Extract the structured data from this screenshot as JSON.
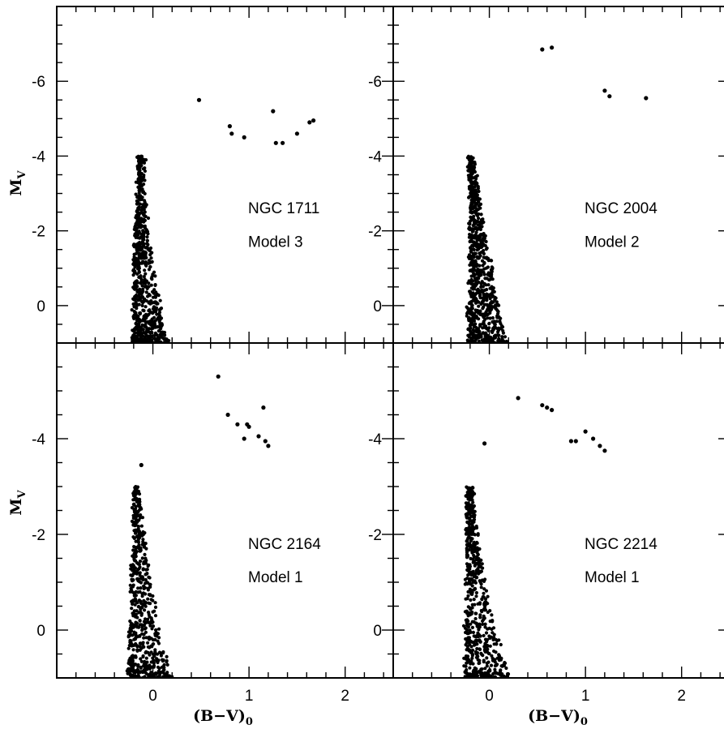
{
  "chart_data": [
    {
      "type": "scatter",
      "panel": "top-left",
      "annotations": [
        "NGC 1711",
        "Model 3"
      ],
      "xlabel": "",
      "ylabel": "M_V",
      "xlim": [
        -1.0,
        2.5
      ],
      "ylim": [
        1.0,
        -8.0
      ],
      "yticks": [
        0,
        -2,
        -4,
        -6
      ],
      "xticks": [],
      "main_sequence": {
        "blue_edge": [
          [
            0,
            -0.2
          ],
          [
            -1,
            -0.2
          ],
          [
            -2,
            -0.18
          ],
          [
            -3,
            -0.16
          ],
          [
            -4,
            -0.15
          ]
        ],
        "width_at_faint": 0.3,
        "approx_points": 700
      },
      "giants": [
        [
          0.48,
          -5.5
        ],
        [
          0.8,
          -4.8
        ],
        [
          0.82,
          -4.6
        ],
        [
          0.95,
          -4.5
        ],
        [
          1.25,
          -5.2
        ],
        [
          1.28,
          -4.35
        ],
        [
          1.35,
          -4.35
        ],
        [
          1.5,
          -4.6
        ],
        [
          1.63,
          -4.9
        ],
        [
          1.67,
          -4.95
        ]
      ]
    },
    {
      "type": "scatter",
      "panel": "top-right",
      "annotations": [
        "NGC 2004",
        "Model 2"
      ],
      "xlabel": "",
      "ylabel": "",
      "xlim": [
        -1.0,
        2.5
      ],
      "ylim": [
        1.0,
        -8.0
      ],
      "yticks": [
        0,
        -2,
        -4,
        -6
      ],
      "xticks": [],
      "main_sequence": {
        "blue_edge": [
          [
            0,
            -0.22
          ],
          [
            -1,
            -0.2
          ],
          [
            -2,
            -0.2
          ],
          [
            -3,
            -0.2
          ],
          [
            -4,
            -0.22
          ]
        ],
        "width_at_faint": 0.35,
        "approx_points": 800
      },
      "giants": [
        [
          0.55,
          -6.85
        ],
        [
          0.65,
          -6.9
        ],
        [
          1.2,
          -5.75
        ],
        [
          1.25,
          -5.6
        ],
        [
          1.63,
          -5.55
        ]
      ]
    },
    {
      "type": "scatter",
      "panel": "bottom-left",
      "annotations": [
        "NGC 2164",
        "Model 1"
      ],
      "xlabel": "(B−V)₀",
      "ylabel": "M_V",
      "xlim": [
        -1.0,
        2.5
      ],
      "ylim": [
        1.0,
        -6.0
      ],
      "yticks": [
        0,
        -2,
        -4
      ],
      "xticks": [
        0,
        1,
        2
      ],
      "main_sequence": {
        "blue_edge": [
          [
            0,
            -0.25
          ],
          [
            -1,
            -0.22
          ],
          [
            -2,
            -0.2
          ],
          [
            -3,
            -0.2
          ]
        ],
        "width_at_faint": 0.4,
        "approx_points": 600
      },
      "giants": [
        [
          -0.12,
          -3.45
        ],
        [
          0.68,
          -5.3
        ],
        [
          0.78,
          -4.5
        ],
        [
          0.88,
          -4.3
        ],
        [
          0.95,
          -4.0
        ],
        [
          0.98,
          -4.3
        ],
        [
          1.0,
          -4.25
        ],
        [
          1.1,
          -4.05
        ],
        [
          1.15,
          -4.65
        ],
        [
          1.17,
          -3.95
        ],
        [
          1.2,
          -3.85
        ]
      ]
    },
    {
      "type": "scatter",
      "panel": "bottom-right",
      "annotations": [
        "NGC 2214",
        "Model 1"
      ],
      "xlabel": "(B−V)₀",
      "ylabel": "",
      "xlim": [
        -1.0,
        2.5
      ],
      "ylim": [
        1.0,
        -6.0
      ],
      "yticks": [
        0,
        -2,
        -4
      ],
      "xticks": [
        0,
        1,
        2
      ],
      "main_sequence": {
        "blue_edge": [
          [
            0,
            -0.25
          ],
          [
            -1,
            -0.24
          ],
          [
            -2,
            -0.23
          ],
          [
            -3,
            -0.23
          ]
        ],
        "width_at_faint": 0.4,
        "approx_points": 650
      },
      "giants": [
        [
          -0.05,
          -3.9
        ],
        [
          0.3,
          -4.85
        ],
        [
          0.55,
          -4.7
        ],
        [
          0.6,
          -4.65
        ],
        [
          0.65,
          -4.6
        ],
        [
          0.85,
          -3.95
        ],
        [
          0.9,
          -3.95
        ],
        [
          1.0,
          -4.15
        ],
        [
          1.08,
          -4.0
        ],
        [
          1.15,
          -3.85
        ],
        [
          1.2,
          -3.75
        ]
      ]
    }
  ]
}
